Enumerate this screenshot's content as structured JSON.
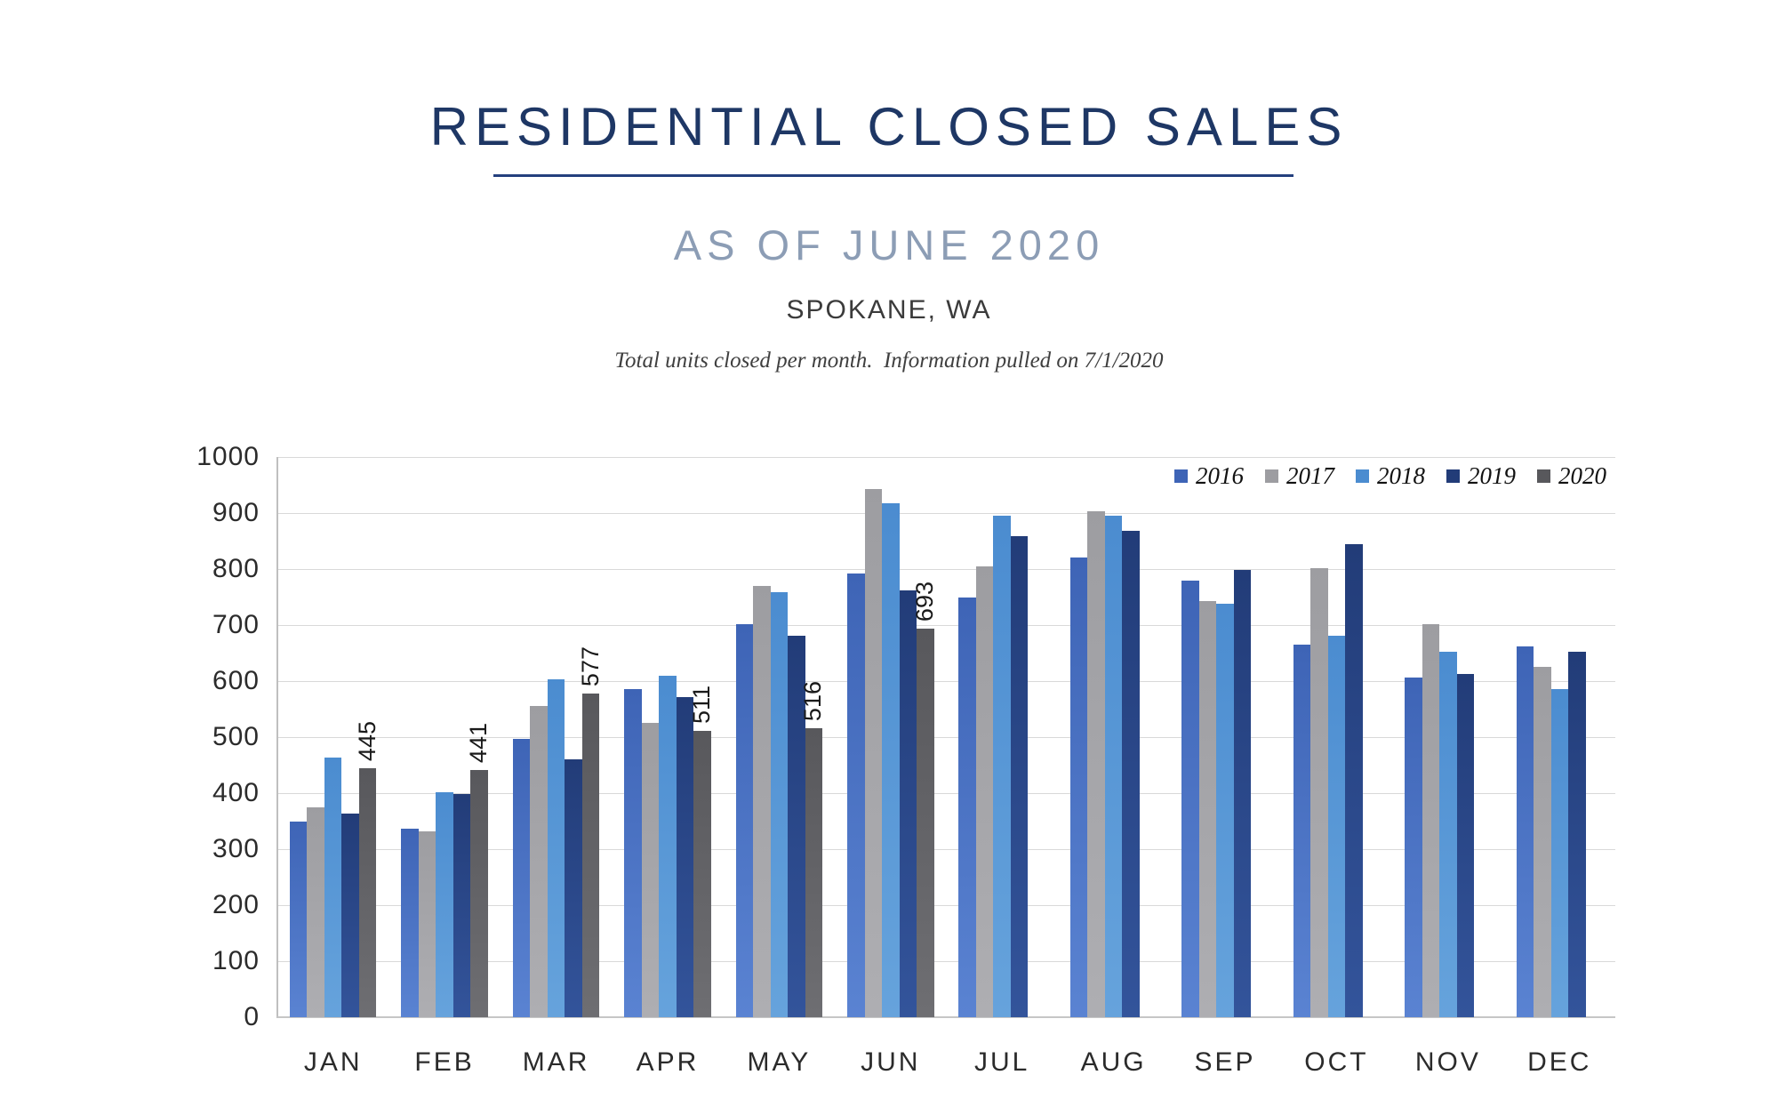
{
  "header": {
    "title": "RESIDENTIAL CLOSED SALES",
    "subtitle": "AS OF JUNE 2020",
    "location": "SPOKANE, WA",
    "note": "Total units closed per month.  Information pulled on 7/1/2020"
  },
  "chart_data": {
    "type": "bar",
    "title": "RESIDENTIAL CLOSED SALES",
    "subtitle": "AS OF JUNE 2020",
    "region": "SPOKANE, WA",
    "caption": "Total units closed per month.  Information pulled on 7/1/2020",
    "categories": [
      "JAN",
      "FEB",
      "MAR",
      "APR",
      "MAY",
      "JUN",
      "JUL",
      "AUG",
      "SEP",
      "OCT",
      "NOV",
      "DEC"
    ],
    "series": [
      {
        "name": "2016",
        "color_top": "#3e64b6",
        "color_bottom": "#5a83d2",
        "values": [
          350,
          336,
          497,
          586,
          702,
          792,
          749,
          821,
          780,
          665,
          607,
          662
        ],
        "show_data_labels": false
      },
      {
        "name": "2017",
        "color_top": "#9d9da1",
        "color_bottom": "#aeaeb2",
        "values": [
          375,
          331,
          556,
          525,
          770,
          943,
          804,
          903,
          743,
          802,
          702,
          626
        ],
        "show_data_labels": false
      },
      {
        "name": "2018",
        "color_top": "#4b8cd0",
        "color_bottom": "#66a3dc",
        "values": [
          464,
          401,
          603,
          610,
          758,
          917,
          895,
          896,
          738,
          681,
          652,
          586
        ],
        "show_data_labels": false
      },
      {
        "name": "2019",
        "color_top": "#223c78",
        "color_bottom": "#33549b",
        "values": [
          363,
          398,
          460,
          571,
          681,
          762,
          859,
          868,
          799,
          845,
          613,
          652
        ],
        "show_data_labels": false
      },
      {
        "name": "2020",
        "color_top": "#58585c",
        "color_bottom": "#6e6e72",
        "values": [
          445,
          441,
          577,
          511,
          516,
          693,
          null,
          null,
          null,
          null,
          null,
          null
        ],
        "show_data_labels": true,
        "data_labels": [
          "445",
          "441",
          "577",
          "511",
          "516",
          "693",
          "",
          "",
          "",
          "",
          "",
          ""
        ]
      }
    ],
    "ylim": [
      0,
      1000
    ],
    "y_ticks": [
      0,
      100,
      200,
      300,
      400,
      500,
      600,
      700,
      800,
      900,
      1000
    ],
    "grid": "horizontal",
    "legend_position": "top-right",
    "colors": {
      "title": "#1e3765",
      "subtitle": "#8c9db5",
      "gridline": "#d9d9d9",
      "axis": "#bfbfbf"
    }
  }
}
